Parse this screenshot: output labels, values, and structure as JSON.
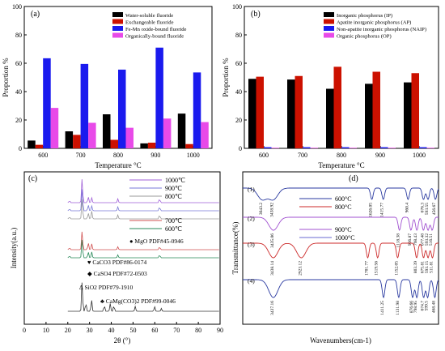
{
  "chart_data": [
    {
      "panel": "(a)",
      "type": "bar",
      "xlabel": "Temperature °C",
      "ylabel": "Proportion %",
      "ylim": [
        0,
        100
      ],
      "yticks": [
        0,
        20,
        40,
        60,
        80,
        100
      ],
      "categories": [
        "600",
        "700",
        "800",
        "900",
        "1000"
      ],
      "legend_position": "top-right",
      "series": [
        {
          "name": "Water-soluble fluoride",
          "color": "#000000",
          "values": [
            5.5,
            12,
            24,
            3.5,
            24.5
          ]
        },
        {
          "name": "Exchangeable fluoride",
          "color": "#cc1100",
          "values": [
            2.5,
            9.5,
            6,
            4,
            3
          ]
        },
        {
          "name": "Fe-Mn oxide-bound fluoride",
          "color": "#1a1aee",
          "values": [
            63.5,
            59.5,
            55.5,
            71,
            53.5
          ]
        },
        {
          "name": "Organically-bound fluoride",
          "color": "#e84ae8",
          "values": [
            28.5,
            18,
            14.5,
            21,
            18.5
          ]
        }
      ]
    },
    {
      "panel": "(b)",
      "type": "bar",
      "xlabel": "Temperature °C",
      "ylabel": "Proportion %",
      "ylim": [
        0,
        100
      ],
      "yticks": [
        0,
        20,
        40,
        60,
        80,
        100
      ],
      "categories": [
        "600",
        "700",
        "800",
        "900",
        "1000"
      ],
      "legend_position": "top-right",
      "series": [
        {
          "name": "Inorganic phosphorus (IP)",
          "color": "#000000",
          "values": [
            49,
            48.5,
            42,
            45.5,
            46.5
          ]
        },
        {
          "name": "Apatite inorganic phosphorus (AP)",
          "color": "#cc1100",
          "values": [
            50.5,
            51,
            57.5,
            54,
            53
          ]
        },
        {
          "name": "Non-apatite inorganic phosphorus (NAIP)",
          "color": "#1a1aee",
          "values": [
            0.8,
            0.8,
            0.8,
            0.8,
            0.8
          ]
        },
        {
          "name": "Organic phosphorus (OP)",
          "color": "#e84ae8",
          "values": [
            0.4,
            0.4,
            0.4,
            0.4,
            0.4
          ]
        }
      ]
    },
    {
      "panel": "(c)",
      "type": "line",
      "xlabel": "2θ (°)",
      "ylabel": "Intensity(a.u.)",
      "xlim": [
        0,
        90
      ],
      "xticks": [
        0,
        10,
        20,
        30,
        40,
        50,
        60,
        70,
        80,
        90
      ],
      "legend_top": [
        {
          "name": "1000℃",
          "color": "#a060d8"
        },
        {
          "name": "900℃",
          "color": "#7a7ad8"
        },
        {
          "name": "800℃",
          "color": "#9a9a9a"
        }
      ],
      "legend_mid": [
        {
          "name": "700℃",
          "color": "#d05050"
        },
        {
          "name": "600℃",
          "color": "#2a8a5a"
        }
      ],
      "series": [
        {
          "name": "1000℃",
          "color": "#a060d8",
          "peaks": [
            [
              20.8,
              0.2
            ],
            [
              26.6,
              2.6
            ],
            [
              29.4,
              0.6
            ],
            [
              31.0,
              0.5
            ],
            [
              43.0,
              0.4
            ],
            [
              62.2,
              0.4
            ]
          ]
        },
        {
          "name": "900℃",
          "color": "#7a7ad8",
          "peaks": [
            [
              20.8,
              0.2
            ],
            [
              26.6,
              2.4
            ],
            [
              29.4,
              0.6
            ],
            [
              31.0,
              0.5
            ],
            [
              43.0,
              0.4
            ],
            [
              62.2,
              0.4
            ]
          ]
        },
        {
          "name": "800℃",
          "color": "#9a9a9a",
          "peaks": [
            [
              20.8,
              0.2
            ],
            [
              26.6,
              2.2
            ],
            [
              29.4,
              0.6
            ],
            [
              31.0,
              0.8
            ],
            [
              43.0,
              0.4
            ],
            [
              62.2,
              0.4
            ]
          ]
        },
        {
          "name": "700℃",
          "color": "#d05050",
          "peaks": [
            [
              20.8,
              0.2
            ],
            [
              26.6,
              2.0
            ],
            [
              29.4,
              0.7
            ],
            [
              31.0,
              0.6
            ],
            [
              43.0,
              0.3
            ],
            [
              62.2,
              0.3
            ]
          ]
        },
        {
          "name": "600℃",
          "color": "#2a8a5a",
          "peaks": [
            [
              20.8,
              0.2
            ],
            [
              26.6,
              2.0
            ],
            [
              29.4,
              0.6
            ],
            [
              31.0,
              0.6
            ],
            [
              43.0,
              0.3
            ],
            [
              62.2,
              0.3
            ]
          ]
        },
        {
          "name": "CaMg(CO3)2",
          "color": "#333333",
          "peaks": [
            [
              26.6,
              3.2
            ],
            [
              28.3,
              0.9
            ],
            [
              30.9,
              1.2
            ],
            [
              36.8,
              0.6
            ],
            [
              39.5,
              0.8
            ],
            [
              41.2,
              0.6
            ],
            [
              51.0,
              0.5
            ],
            [
              59.9,
              0.5
            ],
            [
              63.0,
              0.3
            ]
          ]
        }
      ],
      "phase_legend": [
        {
          "symbol": "●",
          "text": "MgO PDF#45-0946"
        },
        {
          "symbol": "♥",
          "text": "CaCO3 PDF#86-0174"
        },
        {
          "symbol": "◆",
          "text": "CaSO4 PDF#72-0503"
        },
        {
          "symbol": "∆",
          "text": "SiO2 PDF#79-1910"
        },
        {
          "symbol": "♣",
          "text": "CaMg(CO3)2 PDF#99-0046"
        }
      ]
    },
    {
      "panel": "(d)",
      "type": "line",
      "xlabel": "Wavenumbers(cm-1)",
      "ylabel": "Transmittance(%)",
      "legend_1": [
        {
          "name": "600°C",
          "color": "#2a3aa0"
        },
        {
          "name": "800°C",
          "color": "#cc2a2a"
        }
      ],
      "legend_2": [
        {
          "name": "900°C",
          "color": "#a050d0"
        },
        {
          "name": "1000°C",
          "color": "#6a6ad0"
        }
      ],
      "curve_labels": [
        "(1)",
        "(2)",
        "(3)",
        "(4)"
      ],
      "series": [
        {
          "name": "(1)",
          "color": "#2a3aa0",
          "peaks": [
            3643.2,
            3438.92,
            1626.05,
            1415.77,
            960.4,
            676.3,
            593.55,
            456.67
          ]
        },
        {
          "name": "(2)",
          "color": "#a050d0",
          "peaks": [
            3435.06,
            1118.38,
            906.87,
            798.43,
            677.48,
            593.32,
            516.51
          ]
        },
        {
          "name": "(3)",
          "color": "#cc2a2a",
          "peaks": [
            3438.14,
            2923.12,
            1701.77,
            1519.56,
            1152.05,
            803.39,
            675.81,
            593.15,
            511.81
          ]
        },
        {
          "name": "(4)",
          "color": "#2a3aa0",
          "peaks": [
            3437.16,
            1411.25,
            1131.98,
            876.66,
            798.95,
            674.7,
            599.5,
            468.48
          ]
        }
      ]
    }
  ]
}
